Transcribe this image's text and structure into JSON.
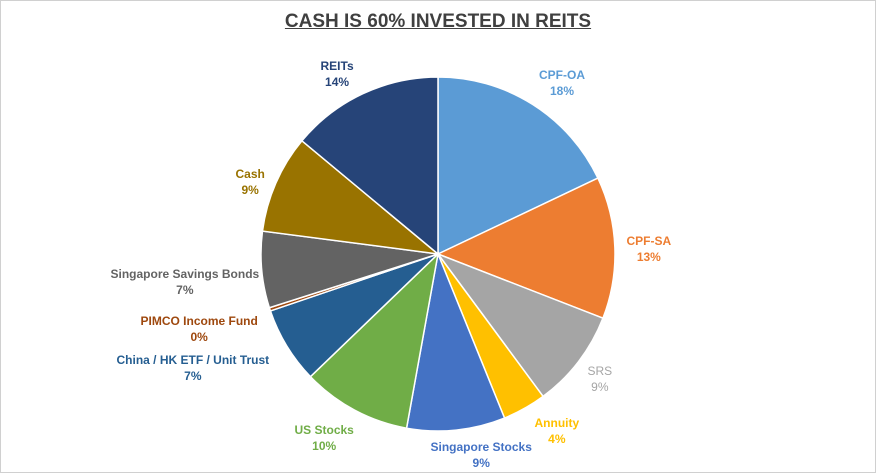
{
  "chart_data": {
    "type": "pie",
    "title": "CASH IS 60% INVESTED IN REITS",
    "start_angle_deg": 0,
    "direction": "clockwise",
    "slices": [
      {
        "name": "CPF-OA",
        "value": 18,
        "label": "18%",
        "color": "#5B9BD5"
      },
      {
        "name": "CPF-SA",
        "value": 13,
        "label": "13%",
        "color": "#ED7D31"
      },
      {
        "name": "SRS",
        "value": 9,
        "label": "9%",
        "color": "#A5A5A5"
      },
      {
        "name": "Annuity",
        "value": 4,
        "label": "4%",
        "color": "#FFC000"
      },
      {
        "name": "Singapore Stocks",
        "value": 9,
        "label": "9%",
        "color": "#4472C4"
      },
      {
        "name": "US Stocks",
        "value": 10,
        "label": "10%",
        "color": "#70AD47"
      },
      {
        "name": "China / HK ETF / Unit Trust",
        "value": 7,
        "label": "7%",
        "color": "#255E91"
      },
      {
        "name": "PIMCO Income Fund",
        "value": 0.3,
        "label": "0%",
        "color": "#9E480E"
      },
      {
        "name": "Singapore Savings Bonds",
        "value": 7,
        "label": "7%",
        "color": "#636363"
      },
      {
        "name": "Cash",
        "value": 9,
        "label": "9%",
        "color": "#997300"
      },
      {
        "name": "REITs",
        "value": 14,
        "label": "14%",
        "color": "#264478"
      }
    ]
  }
}
